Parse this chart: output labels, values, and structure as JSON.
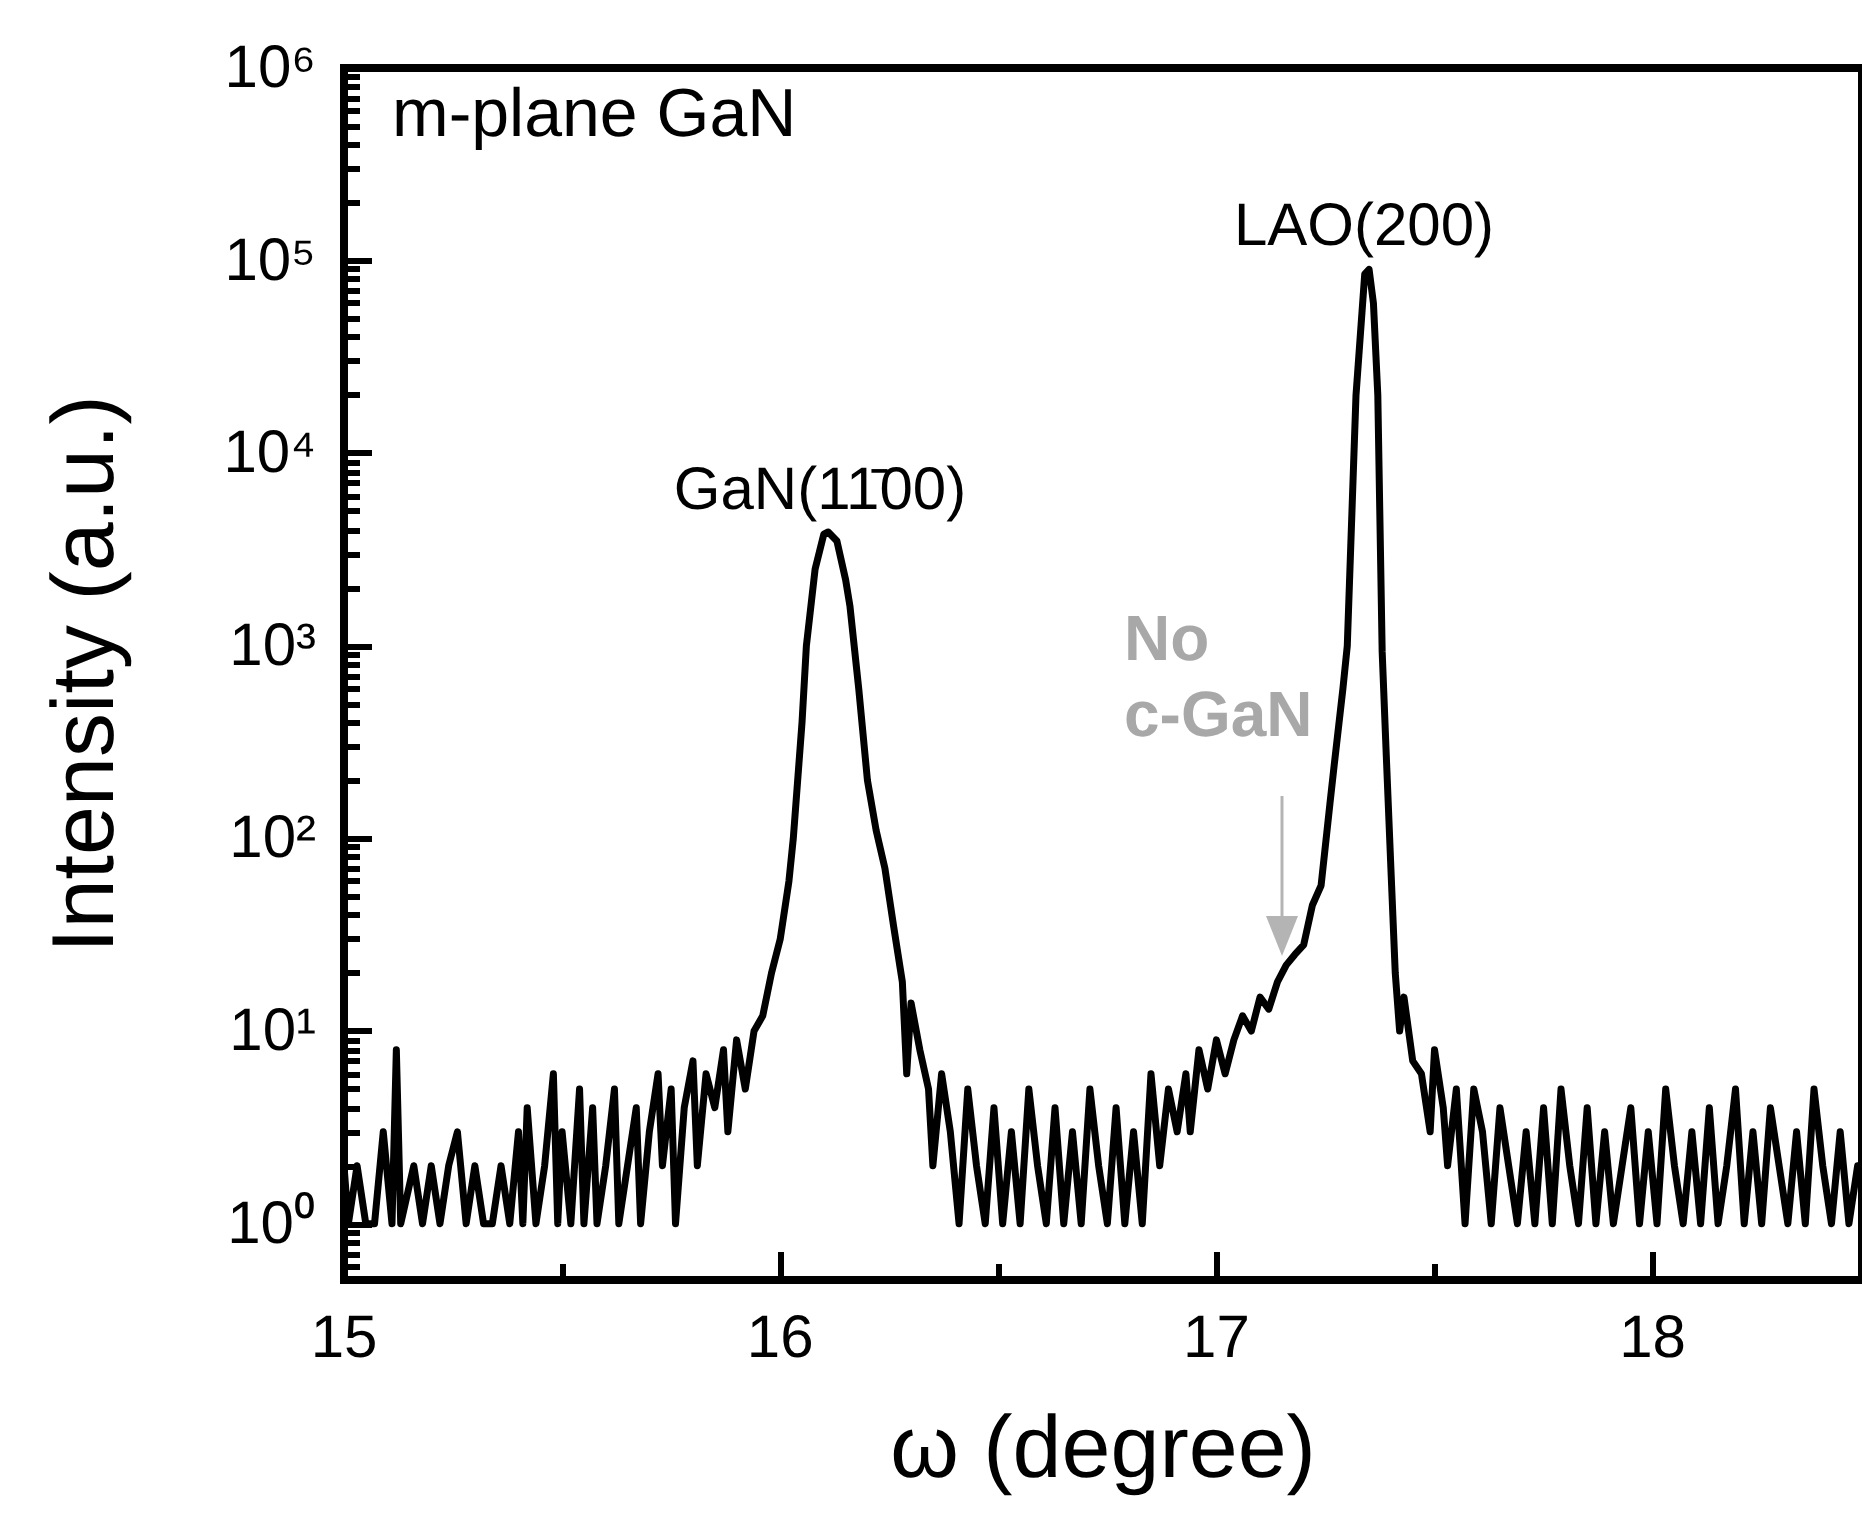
{
  "chart_data": {
    "type": "line",
    "xlabel": "ω (degree)",
    "ylabel": "Intensity (a.u.)",
    "annotations": [
      "m-plane GaN",
      "GaN(11̄00)",
      "LAO(200)",
      "No c-GaN"
    ],
    "log": "y",
    "grid": false,
    "marker": "none",
    "line_style": "solid",
    "xlim": [
      15,
      18.48
    ],
    "xticks": [
      15,
      16,
      17,
      18
    ],
    "ylim": [
      0.51,
      1000000
    ],
    "yticks": [
      {
        "value": 1,
        "label": "10⁰"
      },
      {
        "value": 10,
        "label": "10¹"
      },
      {
        "value": 100,
        "label": "10²"
      },
      {
        "value": 1000,
        "label": "10³"
      },
      {
        "value": 10000,
        "label": "10⁴"
      },
      {
        "value": 100000,
        "label": "10⁵"
      },
      {
        "value": 1000000,
        "label": "10⁶"
      }
    ],
    "series": [
      {
        "color": "#000000",
        "x": [
          15.0,
          15.01,
          15.03,
          15.05,
          15.07,
          15.09,
          15.11,
          15.12,
          15.13,
          15.16,
          15.18,
          15.2,
          15.22,
          15.24,
          15.26,
          15.28,
          15.3,
          15.32,
          15.34,
          15.36,
          15.38,
          15.4,
          15.41,
          15.42,
          15.44,
          15.46,
          15.48,
          15.49,
          15.5,
          15.52,
          15.54,
          15.55,
          15.57,
          15.58,
          15.6,
          15.62,
          15.63,
          15.65,
          15.67,
          15.68,
          15.7,
          15.72,
          15.73,
          15.75,
          15.76,
          15.78,
          15.8,
          15.81,
          15.83,
          15.85,
          15.87,
          15.88,
          15.9,
          15.92,
          15.94,
          15.96,
          15.98,
          16.0,
          16.02,
          16.03,
          16.05,
          16.06,
          16.08,
          16.1,
          16.11,
          16.13,
          16.15,
          16.16,
          16.18,
          16.2,
          16.22,
          16.24,
          16.26,
          16.28,
          16.29,
          16.3,
          16.32,
          16.34,
          16.35,
          16.37,
          16.39,
          16.41,
          16.43,
          16.45,
          16.47,
          16.49,
          16.51,
          16.53,
          16.55,
          16.57,
          16.59,
          16.61,
          16.63,
          16.65,
          16.67,
          16.69,
          16.71,
          16.73,
          16.75,
          16.77,
          16.79,
          16.81,
          16.83,
          16.85,
          16.87,
          16.89,
          16.91,
          16.93,
          16.94,
          16.96,
          16.98,
          17.0,
          17.02,
          17.04,
          17.06,
          17.08,
          17.1,
          17.12,
          17.14,
          17.16,
          17.18,
          17.2,
          17.22,
          17.24,
          17.26,
          17.27,
          17.29,
          17.3,
          17.32,
          17.34,
          17.35,
          17.36,
          17.37,
          17.38,
          17.39,
          17.4,
          17.41,
          17.42,
          17.43,
          17.45,
          17.47,
          17.49,
          17.5,
          17.52,
          17.53,
          17.55,
          17.57,
          17.59,
          17.61,
          17.63,
          17.65,
          17.67,
          17.69,
          17.71,
          17.73,
          17.75,
          17.77,
          17.79,
          17.81,
          17.83,
          17.85,
          17.87,
          17.89,
          17.91,
          17.93,
          17.95,
          17.97,
          17.99,
          18.01,
          18.03,
          18.05,
          18.07,
          18.09,
          18.11,
          18.13,
          18.15,
          18.17,
          18.19,
          18.21,
          18.23,
          18.25,
          18.27,
          18.29,
          18.31,
          18.33,
          18.35,
          18.37,
          18.39,
          18.41,
          18.43,
          18.45,
          18.47
        ],
        "values": [
          2,
          1,
          2,
          1,
          1,
          3,
          1,
          8,
          1,
          2,
          1,
          2,
          1,
          2,
          3,
          1,
          2,
          1,
          1,
          2,
          1,
          3,
          1,
          4,
          1,
          2,
          6,
          1,
          3,
          1,
          5,
          1,
          4,
          1,
          2,
          5,
          1,
          2,
          4,
          1,
          3,
          6,
          2,
          5,
          1,
          4,
          7,
          2,
          6,
          4,
          8,
          3,
          9,
          5,
          10,
          12,
          20,
          30,
          60,
          100,
          400,
          1000,
          2500,
          3800,
          3900,
          3500,
          2200,
          1600,
          600,
          200,
          110,
          70,
          35,
          18,
          6,
          14,
          8,
          5,
          2,
          6,
          3,
          1,
          5,
          2,
          1,
          4,
          1,
          3,
          1,
          5,
          2,
          1,
          4,
          1,
          3,
          1,
          5,
          2,
          1,
          4,
          1,
          3,
          1,
          6,
          2,
          5,
          3,
          6,
          3,
          8,
          5,
          9,
          6,
          9,
          12,
          10,
          15,
          13,
          18,
          22,
          25,
          28,
          45,
          57,
          150,
          240,
          600,
          1000,
          20000,
          85000,
          90000,
          60000,
          20000,
          930,
          250,
          70,
          20,
          10,
          15,
          7,
          6,
          3,
          8,
          4,
          2,
          5,
          1,
          5,
          3,
          1,
          4,
          2,
          1,
          3,
          1,
          4,
          1,
          5,
          2,
          1,
          4,
          1,
          3,
          1,
          2,
          4,
          1,
          3,
          1,
          5,
          2,
          1,
          3,
          1,
          4,
          1,
          2,
          5,
          1,
          3,
          1,
          4,
          2,
          1,
          3,
          1,
          5,
          2,
          1,
          3,
          1,
          2
        ]
      }
    ]
  }
}
